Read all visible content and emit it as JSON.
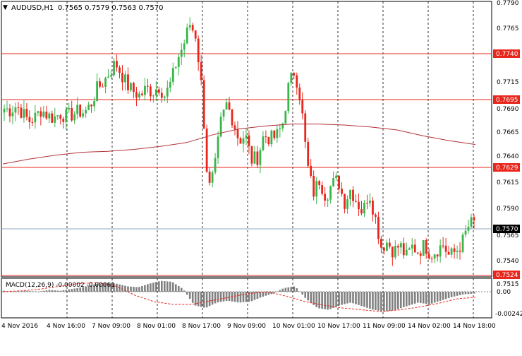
{
  "header": {
    "symbol": "AUDUSD,H1",
    "ohlc": "0.7565 0.7579 0.7563 0.7570"
  },
  "price_axis": {
    "labels": [
      "0.7790",
      "0.7765",
      "0.7715",
      "0.7690",
      "0.7665",
      "0.7640",
      "0.7615",
      "0.7590",
      "0.7565",
      "0.7540",
      "0.7515"
    ]
  },
  "levels": [
    {
      "label": "0.7740",
      "type": "resistance"
    },
    {
      "label": "0.7695",
      "type": "resistance"
    },
    {
      "label": "0.7629",
      "type": "support"
    },
    {
      "label": "0.7524",
      "type": "support"
    }
  ],
  "current_price": {
    "label": "0.7570"
  },
  "macd": {
    "title": "MACD(12,26,9) -0.00002 -0.00061",
    "axis_labels": [
      "0.00",
      "-0.00242"
    ]
  },
  "time_axis": {
    "labels": [
      "4 Nov 2016",
      "4 Nov 16:00",
      "7 Nov 09:00",
      "8 Nov 01:00",
      "8 Nov 17:00",
      "9 Nov 09:00",
      "10 Nov 01:00",
      "10 Nov 17:00",
      "11 Nov 09:00",
      "14 Nov 02:00",
      "14 Nov 18:00"
    ]
  },
  "colors": {
    "bull": "#39B54A",
    "bear": "#E8261C",
    "level_line": "#E8261C",
    "ma_line": "#B2323A",
    "histogram": "#808080",
    "signal": "#E8261C"
  },
  "chart_data": {
    "type": "candlestick",
    "ylim": [
      0.7512,
      0.7795
    ],
    "close_path": [
      0.7685,
      0.7683,
      0.7688,
      0.768,
      0.7672,
      0.7676,
      0.7684,
      0.7678,
      0.7675,
      0.768,
      0.7677,
      0.7679,
      0.7682,
      0.7681,
      0.7689,
      0.7705,
      0.7712,
      0.7722,
      0.7732,
      0.772,
      0.7708,
      0.7702,
      0.7698,
      0.7706,
      0.7702,
      0.7708,
      0.7698,
      0.7712,
      0.7736,
      0.775,
      0.7772,
      0.776,
      0.7702,
      0.76,
      0.762,
      0.767,
      0.769,
      0.7673,
      0.7652,
      0.7658,
      0.7632,
      0.7635,
      0.7658,
      0.7654,
      0.7656,
      0.7668,
      0.7708,
      0.7725,
      0.7692,
      0.7628,
      0.7598,
      0.7612,
      0.7595,
      0.7607,
      0.7612,
      0.7588,
      0.7602,
      0.759,
      0.7578,
      0.76,
      0.7574,
      0.7543,
      0.7548,
      0.7538,
      0.7545,
      0.7532,
      0.7543,
      0.7538,
      0.7545,
      0.7535,
      0.754,
      0.7545,
      0.7533,
      0.7538,
      0.7546,
      0.7563,
      0.757
    ],
    "ma_path": [
      0.7628,
      0.7633,
      0.7637,
      0.764,
      0.7641,
      0.7643,
      0.7646,
      0.765,
      0.7658,
      0.7664,
      0.7667,
      0.7669,
      0.7669,
      0.7668,
      0.7666,
      0.7663,
      0.7657,
      0.7652,
      0.7648
    ],
    "macd_hist": [
      0.0001,
      0.0,
      0.0001,
      0.0,
      0.0002,
      0.0001,
      0.0003,
      0.0005,
      0.0008,
      0.001,
      0.0009,
      0.0006,
      0.0005,
      0.0009,
      0.0012,
      0.0011,
      0.0003,
      -0.0015,
      -0.0018,
      -0.0012,
      -0.001,
      -0.0012,
      -0.0011,
      -0.0006,
      -0.0002,
      0.0004,
      0.0006,
      -0.0008,
      -0.0018,
      -0.002,
      -0.0015,
      -0.0012,
      -0.0016,
      -0.002,
      -0.0022,
      -0.002,
      -0.0016,
      -0.0012,
      -0.0014,
      -0.001,
      -0.0006,
      -0.0003,
      -0.0002
    ],
    "macd_signal": [
      0.0,
      0.0001,
      0.0003,
      0.0006,
      0.0009,
      0.001,
      0.0006,
      -0.0004,
      -0.0011,
      -0.0014,
      -0.0014,
      -0.001,
      -0.0006,
      -0.0002,
      0.0,
      -0.0005,
      -0.0011,
      -0.0015,
      -0.0018,
      -0.002,
      -0.0022,
      -0.002,
      -0.0017,
      -0.0013,
      -0.0008,
      -0.0006
    ]
  }
}
